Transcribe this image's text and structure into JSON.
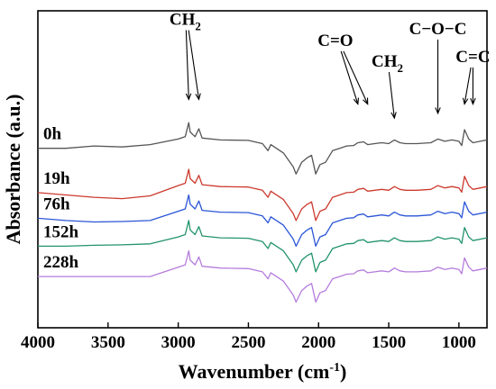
{
  "chart_data": {
    "type": "line",
    "title": "",
    "xlabel": "Wavenumber (cm",
    "xlabel_sup": "-1",
    "xlabel_end": ")",
    "ylabel": "Absorbance (a.u.)",
    "xlim": [
      4000,
      800
    ],
    "x_reversed": true,
    "xticks": [
      4000,
      3500,
      3000,
      2500,
      2000,
      1500,
      1000
    ],
    "yticks": [],
    "grid": false,
    "series": [
      {
        "name": "0h",
        "color": "#555555",
        "offset": 3.05,
        "points": [
          [
            4000,
            0.0
          ],
          [
            3800,
            0.0
          ],
          [
            3600,
            0.05
          ],
          [
            3400,
            0.03
          ],
          [
            3200,
            0.08
          ],
          [
            3000,
            0.2
          ],
          [
            2950,
            0.25
          ],
          [
            2925,
            0.55
          ],
          [
            2915,
            0.35
          ],
          [
            2880,
            0.25
          ],
          [
            2853,
            0.42
          ],
          [
            2830,
            0.22
          ],
          [
            2700,
            0.18
          ],
          [
            2500,
            0.17
          ],
          [
            2400,
            0.1
          ],
          [
            2360,
            -0.05
          ],
          [
            2340,
            0.08
          ],
          [
            2250,
            -0.1
          ],
          [
            2180,
            -0.4
          ],
          [
            2160,
            -0.55
          ],
          [
            2120,
            -0.3
          ],
          [
            2080,
            -0.2
          ],
          [
            2050,
            -0.15
          ],
          [
            2020,
            -0.55
          ],
          [
            1990,
            -0.35
          ],
          [
            1950,
            -0.3
          ],
          [
            1900,
            -0.05
          ],
          [
            1850,
            0.0
          ],
          [
            1800,
            0.05
          ],
          [
            1750,
            0.06
          ],
          [
            1720,
            0.12
          ],
          [
            1680,
            0.14
          ],
          [
            1650,
            0.08
          ],
          [
            1600,
            0.1
          ],
          [
            1550,
            0.12
          ],
          [
            1500,
            0.1
          ],
          [
            1460,
            0.18
          ],
          [
            1420,
            0.12
          ],
          [
            1380,
            0.1
          ],
          [
            1300,
            0.1
          ],
          [
            1200,
            0.12
          ],
          [
            1150,
            0.2
          ],
          [
            1100,
            0.15
          ],
          [
            1050,
            0.18
          ],
          [
            1000,
            0.15
          ],
          [
            980,
            0.06
          ],
          [
            960,
            0.4
          ],
          [
            930,
            0.2
          ],
          [
            900,
            0.12
          ],
          [
            800,
            0.18
          ]
        ]
      },
      {
        "name": "19h",
        "color": "#cc3a2e",
        "offset": 2.05,
        "points": [
          [
            4000,
            0.05
          ],
          [
            3800,
            0.0
          ],
          [
            3600,
            -0.05
          ],
          [
            3400,
            -0.08
          ],
          [
            3200,
            -0.02
          ],
          [
            3000,
            0.2
          ],
          [
            2950,
            0.25
          ],
          [
            2925,
            0.55
          ],
          [
            2915,
            0.35
          ],
          [
            2880,
            0.25
          ],
          [
            2853,
            0.42
          ],
          [
            2830,
            0.22
          ],
          [
            2700,
            0.18
          ],
          [
            2500,
            0.17
          ],
          [
            2400,
            0.1
          ],
          [
            2360,
            -0.05
          ],
          [
            2340,
            0.08
          ],
          [
            2250,
            -0.1
          ],
          [
            2180,
            -0.4
          ],
          [
            2160,
            -0.55
          ],
          [
            2120,
            -0.3
          ],
          [
            2080,
            -0.2
          ],
          [
            2050,
            -0.15
          ],
          [
            2020,
            -0.55
          ],
          [
            1990,
            -0.35
          ],
          [
            1950,
            -0.3
          ],
          [
            1900,
            -0.05
          ],
          [
            1850,
            0.0
          ],
          [
            1800,
            0.05
          ],
          [
            1750,
            0.06
          ],
          [
            1720,
            0.12
          ],
          [
            1680,
            0.14
          ],
          [
            1650,
            0.08
          ],
          [
            1600,
            0.1
          ],
          [
            1550,
            0.12
          ],
          [
            1500,
            0.1
          ],
          [
            1460,
            0.18
          ],
          [
            1420,
            0.12
          ],
          [
            1380,
            0.1
          ],
          [
            1300,
            0.1
          ],
          [
            1200,
            0.12
          ],
          [
            1150,
            0.2
          ],
          [
            1100,
            0.15
          ],
          [
            1050,
            0.18
          ],
          [
            1000,
            0.15
          ],
          [
            980,
            0.06
          ],
          [
            960,
            0.4
          ],
          [
            930,
            0.2
          ],
          [
            900,
            0.12
          ],
          [
            800,
            0.18
          ]
        ]
      },
      {
        "name": "76h",
        "color": "#2a55d6",
        "offset": 1.5,
        "points": [
          [
            4000,
            0.05
          ],
          [
            3800,
            0.0
          ],
          [
            3600,
            -0.03
          ],
          [
            3400,
            -0.02
          ],
          [
            3200,
            0.0
          ],
          [
            3000,
            0.2
          ],
          [
            2950,
            0.25
          ],
          [
            2925,
            0.55
          ],
          [
            2915,
            0.35
          ],
          [
            2880,
            0.25
          ],
          [
            2853,
            0.42
          ],
          [
            2830,
            0.22
          ],
          [
            2700,
            0.18
          ],
          [
            2500,
            0.17
          ],
          [
            2400,
            0.1
          ],
          [
            2360,
            -0.05
          ],
          [
            2340,
            0.08
          ],
          [
            2250,
            -0.1
          ],
          [
            2180,
            -0.4
          ],
          [
            2160,
            -0.55
          ],
          [
            2120,
            -0.3
          ],
          [
            2080,
            -0.2
          ],
          [
            2050,
            -0.15
          ],
          [
            2020,
            -0.55
          ],
          [
            1990,
            -0.35
          ],
          [
            1950,
            -0.3
          ],
          [
            1900,
            -0.05
          ],
          [
            1850,
            0.0
          ],
          [
            1800,
            0.05
          ],
          [
            1750,
            0.06
          ],
          [
            1720,
            0.12
          ],
          [
            1680,
            0.14
          ],
          [
            1650,
            0.08
          ],
          [
            1600,
            0.1
          ],
          [
            1550,
            0.12
          ],
          [
            1500,
            0.1
          ],
          [
            1460,
            0.18
          ],
          [
            1420,
            0.12
          ],
          [
            1380,
            0.1
          ],
          [
            1300,
            0.1
          ],
          [
            1200,
            0.12
          ],
          [
            1150,
            0.2
          ],
          [
            1100,
            0.15
          ],
          [
            1050,
            0.18
          ],
          [
            1000,
            0.15
          ],
          [
            980,
            0.06
          ],
          [
            960,
            0.4
          ],
          [
            930,
            0.2
          ],
          [
            900,
            0.12
          ],
          [
            800,
            0.18
          ]
        ]
      },
      {
        "name": "152h",
        "color": "#22946a",
        "offset": 0.95,
        "points": [
          [
            4000,
            0.0
          ],
          [
            3800,
            0.0
          ],
          [
            3600,
            0.02
          ],
          [
            3400,
            0.03
          ],
          [
            3200,
            0.05
          ],
          [
            3000,
            0.2
          ],
          [
            2950,
            0.25
          ],
          [
            2925,
            0.55
          ],
          [
            2915,
            0.35
          ],
          [
            2880,
            0.25
          ],
          [
            2853,
            0.42
          ],
          [
            2830,
            0.22
          ],
          [
            2700,
            0.18
          ],
          [
            2500,
            0.17
          ],
          [
            2400,
            0.1
          ],
          [
            2360,
            -0.05
          ],
          [
            2340,
            0.08
          ],
          [
            2250,
            -0.1
          ],
          [
            2180,
            -0.4
          ],
          [
            2160,
            -0.55
          ],
          [
            2120,
            -0.3
          ],
          [
            2080,
            -0.2
          ],
          [
            2050,
            -0.15
          ],
          [
            2020,
            -0.55
          ],
          [
            1990,
            -0.35
          ],
          [
            1950,
            -0.3
          ],
          [
            1900,
            -0.05
          ],
          [
            1850,
            0.0
          ],
          [
            1800,
            0.05
          ],
          [
            1750,
            0.06
          ],
          [
            1720,
            0.12
          ],
          [
            1680,
            0.14
          ],
          [
            1650,
            0.08
          ],
          [
            1600,
            0.1
          ],
          [
            1550,
            0.12
          ],
          [
            1500,
            0.1
          ],
          [
            1460,
            0.18
          ],
          [
            1420,
            0.12
          ],
          [
            1380,
            0.1
          ],
          [
            1300,
            0.1
          ],
          [
            1200,
            0.12
          ],
          [
            1150,
            0.2
          ],
          [
            1100,
            0.15
          ],
          [
            1050,
            0.18
          ],
          [
            1000,
            0.15
          ],
          [
            980,
            0.06
          ],
          [
            960,
            0.4
          ],
          [
            930,
            0.2
          ],
          [
            900,
            0.12
          ],
          [
            800,
            0.18
          ]
        ]
      },
      {
        "name": "228h",
        "color": "#b57cdd",
        "offset": 0.3,
        "points": [
          [
            4000,
            0.0
          ],
          [
            3800,
            0.0
          ],
          [
            3600,
            0.0
          ],
          [
            3400,
            0.0
          ],
          [
            3200,
            0.0
          ],
          [
            3000,
            0.2
          ],
          [
            2950,
            0.25
          ],
          [
            2925,
            0.55
          ],
          [
            2915,
            0.35
          ],
          [
            2880,
            0.25
          ],
          [
            2853,
            0.42
          ],
          [
            2830,
            0.22
          ],
          [
            2700,
            0.18
          ],
          [
            2500,
            0.17
          ],
          [
            2400,
            0.1
          ],
          [
            2360,
            -0.05
          ],
          [
            2340,
            0.08
          ],
          [
            2250,
            -0.1
          ],
          [
            2180,
            -0.4
          ],
          [
            2160,
            -0.55
          ],
          [
            2120,
            -0.3
          ],
          [
            2080,
            -0.2
          ],
          [
            2050,
            -0.15
          ],
          [
            2020,
            -0.55
          ],
          [
            1990,
            -0.35
          ],
          [
            1950,
            -0.3
          ],
          [
            1900,
            -0.05
          ],
          [
            1850,
            0.0
          ],
          [
            1800,
            0.05
          ],
          [
            1750,
            0.06
          ],
          [
            1720,
            0.12
          ],
          [
            1680,
            0.14
          ],
          [
            1650,
            0.08
          ],
          [
            1600,
            0.1
          ],
          [
            1550,
            0.12
          ],
          [
            1500,
            0.1
          ],
          [
            1460,
            0.18
          ],
          [
            1420,
            0.12
          ],
          [
            1380,
            0.1
          ],
          [
            1300,
            0.1
          ],
          [
            1200,
            0.12
          ],
          [
            1150,
            0.2
          ],
          [
            1100,
            0.15
          ],
          [
            1050,
            0.18
          ],
          [
            1000,
            0.15
          ],
          [
            980,
            0.06
          ],
          [
            960,
            0.4
          ],
          [
            930,
            0.2
          ],
          [
            900,
            0.12
          ],
          [
            800,
            0.18
          ]
        ]
      }
    ],
    "annotations": [
      {
        "text": "CH",
        "sub": "2",
        "label_x": 2950,
        "label_y": 5.7,
        "targets": [
          2925,
          2853
        ],
        "target_y": 4.1
      },
      {
        "text": "C=O",
        "label_x": 1880,
        "label_y": 5.25,
        "targets": [
          1720,
          1650
        ],
        "target_y": 4.0
      },
      {
        "text": "CH",
        "sub": "2",
        "label_x": 1510,
        "label_y": 4.8,
        "targets": [
          1460
        ],
        "target_y": 3.7
      },
      {
        "text": "C−O−C",
        "label_x": 1150,
        "label_y": 5.5,
        "targets": [
          1150
        ],
        "target_y": 3.8
      },
      {
        "text": "C=C",
        "label_x": 900,
        "label_y": 4.9,
        "targets": [
          960,
          900
        ],
        "target_y": 4.0
      }
    ]
  }
}
